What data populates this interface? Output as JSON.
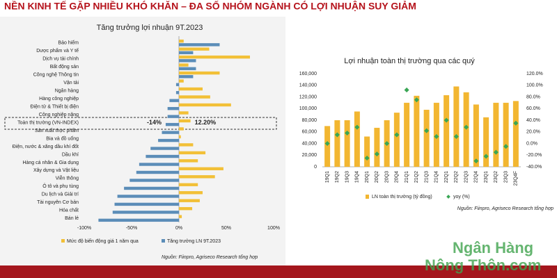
{
  "header": {
    "title": "NỀN KINH TẾ GẶP NHIỀU KHÓ KHĂN – ĐA SỐ NHÓM NGÀNH CÓ LỢI NHUẬN SUY GIẢM"
  },
  "watermark": [
    "Ngân Hàng",
    "Nông Thôn.com"
  ],
  "chart_data": [
    {
      "type": "bar",
      "orientation": "horizontal",
      "title": "Tăng trưởng lợi nhuận 9T.2023",
      "categories": [
        "Bảo hiểm",
        "Dược phẩm và Y tế",
        "Dịch vụ tài chính",
        "Bất động sản",
        "Công nghệ Thông tin",
        "Vận tải",
        "Ngân hàng",
        "Hàng công nghiệp",
        "Điện tử & Thiết bị điện",
        "Công nghiệp nặng",
        "Toàn thị trường (VN-INDEX)",
        "Sản xuất thực phẩm",
        "Bia và đồ uống",
        "Điện, nước & xăng dầu khí đốt",
        "Dầu khí",
        "Hàng cá nhân & Gia dụng",
        "Xây dựng và Vật liệu",
        "Viễn thông",
        "Ô tô và phụ tùng",
        "Du lịch và Giải trí",
        "Tài nguyên Cơ bản",
        "Hóa chất",
        "Bán lẻ"
      ],
      "series": [
        {
          "name": "Mức độ biến động giá 1 năm qua",
          "color": "#f2c037",
          "values": [
            5,
            32,
            75,
            10,
            43,
            5,
            25,
            33,
            55,
            10,
            12.2,
            5,
            2,
            15,
            28,
            20,
            47,
            38,
            20,
            25,
            22,
            14,
            3
          ],
          "value_labels": [
            null,
            null,
            null,
            null,
            null,
            null,
            null,
            null,
            null,
            null,
            "12.20%",
            null,
            null,
            null,
            null,
            null,
            null,
            null,
            null,
            null,
            null,
            null,
            null
          ]
        },
        {
          "name": "Tăng trưởng LN 9T.2023",
          "color": "#5b8db8",
          "values": [
            43,
            15,
            18,
            18,
            15,
            -3,
            -3,
            -10,
            -12,
            -12,
            -14,
            -18,
            -22,
            -30,
            -35,
            -42,
            -45,
            -52,
            -58,
            -65,
            -68,
            -70,
            -85
          ],
          "value_labels": [
            null,
            null,
            null,
            null,
            null,
            null,
            null,
            null,
            null,
            null,
            "-14%",
            null,
            null,
            null,
            null,
            null,
            null,
            null,
            null,
            null,
            null,
            null,
            null
          ]
        }
      ],
      "xlim": [
        -100,
        100
      ],
      "xticks": [
        {
          "value": -100,
          "label": "-100%"
        },
        {
          "value": -50,
          "label": "-50%"
        },
        {
          "value": 0,
          "label": "0%"
        },
        {
          "value": 50,
          "label": "50%"
        },
        {
          "value": 100,
          "label": "100%"
        }
      ],
      "grid": false,
      "source": "Nguồn: Fiinpro, Agriseco Research tổng hợp"
    },
    {
      "type": "combo",
      "title": "Lợi nhuận toàn thị trường qua các quý",
      "categories": [
        "19Q1",
        "19Q2",
        "19Q3",
        "19Q4",
        "20Q1",
        "20Q2",
        "20Q3",
        "20Q4",
        "21Q1",
        "21Q2",
        "21Q3",
        "21Q4",
        "22Q1",
        "22Q2",
        "22Q3",
        "22Q4",
        "23Q1",
        "23Q2",
        "23Q3",
        "23Q4F"
      ],
      "series": [
        {
          "name": "LN toàn thị trường (tỷ đồng)",
          "type": "bar",
          "color": "#f2b631",
          "values": [
            70000,
            80000,
            80000,
            95000,
            52000,
            67000,
            80000,
            93000,
            110000,
            122000,
            98000,
            110000,
            123000,
            138000,
            128000,
            107000,
            85000,
            110000,
            110000,
            113000
          ]
        },
        {
          "name": "yoy (%)",
          "type": "scatter",
          "axis": "y2",
          "color": "#3aa655",
          "values": [
            0,
            15,
            18,
            28,
            -25,
            -18,
            0,
            15,
            92,
            75,
            22,
            12,
            40,
            12,
            28,
            -30,
            -22,
            -15,
            -5,
            35
          ]
        }
      ],
      "ylim": [
        0,
        160000
      ],
      "yticks": [
        0,
        {
          "value": 20000,
          "label": "20,000"
        },
        {
          "value": 40000,
          "label": "40,000"
        },
        {
          "value": 60000,
          "label": "60,000"
        },
        {
          "value": 80000,
          "label": "80,000"
        },
        {
          "value": 100000,
          "label": "100,000"
        },
        {
          "value": 120000,
          "label": "120,000"
        },
        {
          "value": 140000,
          "label": "140,000"
        },
        {
          "value": 160000,
          "label": "160,000"
        }
      ],
      "y2lim": [
        -40,
        120
      ],
      "y2ticks": [
        {
          "value": -40,
          "label": "-40.0%"
        },
        {
          "value": -20,
          "label": "-20.0%"
        },
        {
          "value": 0,
          "label": "0.0%"
        },
        {
          "value": 20,
          "label": "20.0%"
        },
        {
          "value": 40,
          "label": "40.0%"
        },
        {
          "value": 60,
          "label": "60.0%"
        },
        {
          "value": 80,
          "label": "80.0%"
        },
        {
          "value": 100,
          "label": "100.0%"
        },
        {
          "value": 120,
          "label": "120.0%"
        }
      ],
      "grid": false,
      "source": "Nguồn: Fiinpro, Agriseco Research tổng hợp"
    }
  ]
}
